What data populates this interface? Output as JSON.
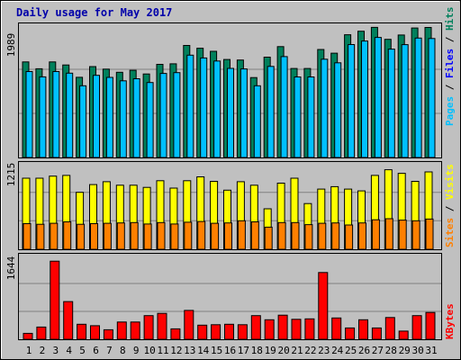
{
  "colors": {
    "background": "#c0c0c0",
    "pages": "#00805c",
    "files": "#00c0ff",
    "hits": "#00805c",
    "visits": "#ffff00",
    "sites": "#ff8000",
    "kbytes": "#ff0000",
    "weekend_label": "#00805c",
    "title": "#0000aa"
  },
  "chart_data": [
    {
      "type": "bar",
      "title": "Daily usage for May 2017",
      "panel": "hits-files-pages",
      "categories": [
        "1",
        "2",
        "3",
        "4",
        "5",
        "6",
        "7",
        "8",
        "9",
        "10",
        "11",
        "12",
        "13",
        "14",
        "15",
        "16",
        "17",
        "18",
        "19",
        "20",
        "21",
        "22",
        "23",
        "24",
        "25",
        "26",
        "27",
        "28",
        "29",
        "30",
        "31"
      ],
      "weekend_days": [
        "6",
        "7",
        "13",
        "14",
        "20",
        "21",
        "27",
        "28"
      ],
      "ymax_label": "1989",
      "ylim": [
        0,
        1989
      ],
      "grid": true,
      "legend": [
        "Pages",
        "Files",
        "Hits"
      ],
      "series": [
        {
          "name": "Hits",
          "values": [
            1437,
            1334,
            1437,
            1391,
            1206,
            1366,
            1329,
            1282,
            1311,
            1256,
            1401,
            1409,
            1685,
            1643,
            1597,
            1474,
            1465,
            1202,
            1508,
            1667,
            1338,
            1338,
            1623,
            1568,
            1846,
            1898,
            1957,
            1776,
            1841,
            1947,
            1955
          ]
        },
        {
          "name": "Files",
          "values": [
            1373,
            1294,
            1373,
            1349,
            1160,
            1316,
            1286,
            1234,
            1265,
            1208,
            1345,
            1357,
            1619,
            1577,
            1532,
            1421,
            1413,
            1160,
            1450,
            1598,
            1292,
            1292,
            1559,
            1505,
            1779,
            1832,
            1886,
            1710,
            1778,
            1877,
            1870
          ]
        }
      ]
    },
    {
      "type": "bar",
      "panel": "visits-sites",
      "ymax_label": "1215",
      "ylim": [
        0,
        1215
      ],
      "grid": true,
      "legend": [
        "Sites",
        "Visits"
      ],
      "series": [
        {
          "name": "Visits",
          "values": [
            1010,
            1010,
            1040,
            1050,
            810,
            920,
            960,
            910,
            910,
            880,
            975,
            870,
            975,
            1030,
            965,
            840,
            960,
            910,
            575,
            940,
            1010,
            650,
            855,
            890,
            855,
            830,
            1050,
            1130,
            1080,
            965,
            1100
          ]
        },
        {
          "name": "Sites",
          "values": [
            365,
            355,
            370,
            390,
            355,
            365,
            370,
            375,
            380,
            360,
            380,
            360,
            385,
            395,
            370,
            375,
            405,
            390,
            315,
            380,
            380,
            350,
            370,
            375,
            345,
            375,
            420,
            435,
            415,
            405,
            430
          ]
        }
      ]
    },
    {
      "type": "bar",
      "panel": "kbytes",
      "ymax_label": "1644",
      "ylim": [
        0,
        1644
      ],
      "grid": true,
      "legend": [
        "KBytes"
      ],
      "series": [
        {
          "name": "KBytes",
          "values": [
            130,
            270,
            1720,
            830,
            330,
            300,
            210,
            380,
            380,
            520,
            570,
            230,
            635,
            310,
            320,
            330,
            320,
            520,
            430,
            530,
            440,
            450,
            1470,
            470,
            250,
            430,
            250,
            480,
            180,
            520,
            590
          ]
        }
      ]
    }
  ]
}
